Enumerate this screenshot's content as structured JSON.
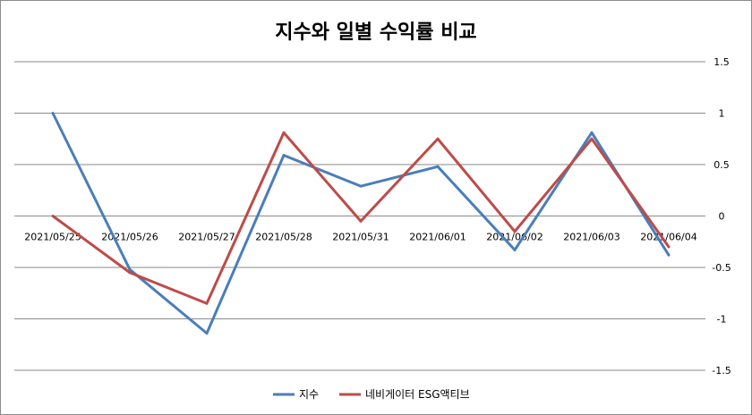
{
  "chart_data": {
    "type": "line",
    "title": "지수와 일별 수익률 비교",
    "categories": [
      "2021/05/25",
      "2021/05/26",
      "2021/05/27",
      "2021/05/28",
      "2021/05/31",
      "2021/06/01",
      "2021/06/02",
      "2021/06/03",
      "2021/06/04"
    ],
    "series": [
      {
        "name": "지수",
        "color": "#4a7ebb",
        "values": [
          1.0,
          -0.52,
          -1.14,
          0.59,
          0.29,
          0.48,
          -0.33,
          0.81,
          -0.38
        ]
      },
      {
        "name": "네비게이터 ESG액티브",
        "color": "#be4b48",
        "values": [
          0.0,
          -0.55,
          -0.85,
          0.81,
          -0.05,
          0.75,
          -0.15,
          0.75,
          -0.3
        ]
      }
    ],
    "y_ticks": [
      "1.5",
      "1",
      "0.5",
      "0",
      "-0.5",
      "-1",
      "-1.5"
    ],
    "y_tick_values": [
      1.5,
      1,
      0.5,
      0,
      -0.5,
      -1,
      -1.5
    ],
    "ylim": [
      -1.5,
      1.5
    ],
    "grid": true,
    "legend_position": "bottom",
    "xlabel": "",
    "ylabel": ""
  }
}
